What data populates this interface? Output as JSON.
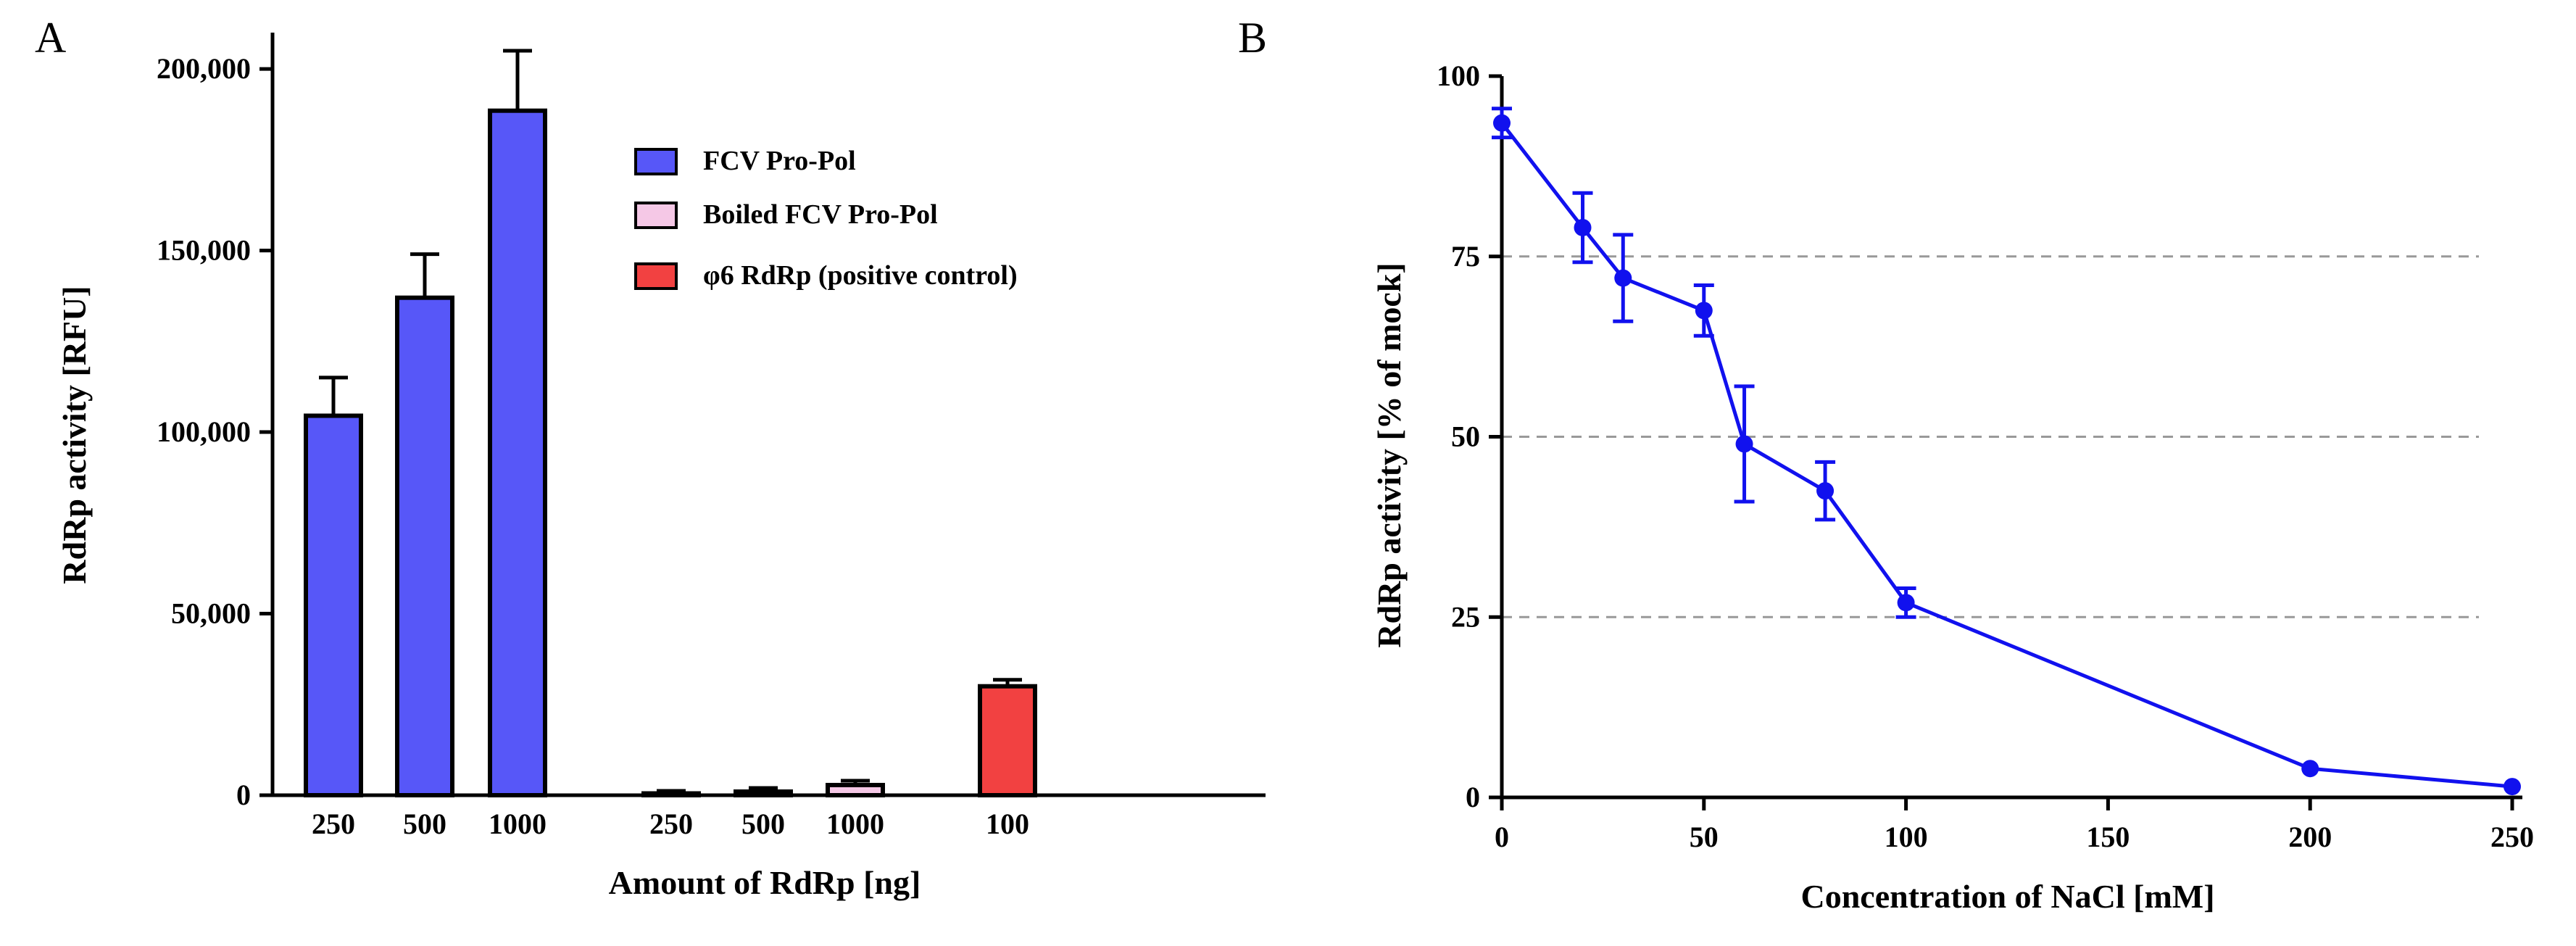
{
  "chart_data": [
    {
      "panel": "A",
      "type": "bar",
      "xlabel": "Amount of RdRp [ng]",
      "ylabel": "RdRp activity [RFU]",
      "ylim": [
        0,
        210000
      ],
      "yticks": [
        0,
        50000,
        100000,
        150000,
        200000
      ],
      "ytick_labels": [
        "0",
        "50,000",
        "100,000",
        "150,000",
        "200,000"
      ],
      "colors": {
        "FCV Pro-Pol": "#5757f8",
        "Boiled FCV Pro-Pol": "#f5c8e6",
        "φ6 RdRp (positive control)": "#f24141"
      },
      "legend": [
        "FCV Pro-Pol",
        "Boiled FCV Pro-Pol",
        "φ6 RdRp (positive control)"
      ],
      "bars": [
        {
          "label": "250",
          "series": "FCV Pro-Pol",
          "value": 104500,
          "error": 10500
        },
        {
          "label": "500",
          "series": "FCV Pro-Pol",
          "value": 137000,
          "error": 12000
        },
        {
          "label": "1000",
          "series": "FCV Pro-Pol",
          "value": 188500,
          "error": 16500
        },
        {
          "label": "250",
          "series": "Boiled FCV Pro-Pol",
          "value": 500,
          "error": 700
        },
        {
          "label": "500",
          "series": "Boiled FCV Pro-Pol",
          "value": 1000,
          "error": 1000
        },
        {
          "label": "1000",
          "series": "Boiled FCV Pro-Pol",
          "value": 2800,
          "error": 1200
        },
        {
          "label": "100",
          "series": "φ6 RdRp (positive control)",
          "value": 30000,
          "error": 1800
        }
      ]
    },
    {
      "panel": "B",
      "type": "line",
      "xlabel": "Concentration of NaCl [mM]",
      "ylabel": "RdRp activity  [% of mock]",
      "xlim": [
        0,
        250
      ],
      "ylim": [
        0,
        100
      ],
      "xticks": [
        0,
        50,
        100,
        150,
        200,
        250
      ],
      "yticks": [
        0,
        25,
        50,
        75,
        100
      ],
      "gridlines_y": [
        25,
        50,
        75
      ],
      "color": "#1111ee",
      "x": [
        0,
        20,
        30,
        50,
        60,
        80,
        100,
        200,
        250
      ],
      "y": [
        93.5,
        79,
        72,
        67.5,
        49,
        42.5,
        27,
        4,
        1.5
      ],
      "err": [
        2,
        4.8,
        6,
        3.5,
        8,
        4,
        2,
        0,
        0
      ]
    }
  ]
}
